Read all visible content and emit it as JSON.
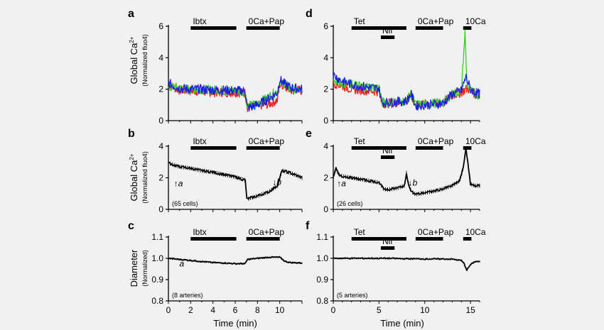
{
  "figure": {
    "panel_letters": [
      "a",
      "b",
      "c",
      "d",
      "e",
      "f"
    ],
    "ylabels": {
      "global_ca": "Global Ca",
      "global_ca_sup": "2+",
      "normalized_fluo4": "(Normalized fluo4)",
      "diameter": "Diameter",
      "normalized": "(Normalized)"
    },
    "xlabel": "Time (min)",
    "colors": {
      "red": "#e8231e",
      "green": "#35d020",
      "blue": "#1c20e6",
      "black": "#000000"
    }
  },
  "chart_data": [
    {
      "panel": "a",
      "type": "line",
      "ylim": [
        0,
        6
      ],
      "yticks": [
        0,
        2,
        4,
        6
      ],
      "xlim": [
        0,
        12
      ],
      "ylabel": "Global Ca2+ (Normalized fluo4)",
      "bars": [
        {
          "label": "Ibtx",
          "start": 2,
          "end": 6.1
        },
        {
          "label": "0Ca+Pap",
          "start": 7,
          "end": 10
        }
      ],
      "series": [
        {
          "name": "red",
          "color": "#e8231e",
          "x": [
            0,
            0.5,
            1,
            2,
            3,
            4,
            5,
            6,
            6.9,
            7.1,
            8,
            9,
            9.8,
            10,
            10.5,
            11,
            12
          ],
          "y": [
            2.3,
            2.1,
            1.95,
            1.9,
            1.85,
            1.8,
            1.8,
            1.8,
            1.75,
            0.85,
            0.95,
            1.05,
            1.3,
            2.3,
            2.2,
            2.0,
            1.9
          ]
        },
        {
          "name": "green",
          "color": "#35d020",
          "x": [
            0,
            0.5,
            1,
            2,
            3,
            4,
            5,
            6,
            6.9,
            7.1,
            8,
            9,
            9.8,
            10,
            10.5,
            11,
            12
          ],
          "y": [
            2.0,
            2.2,
            2.0,
            2.0,
            2.0,
            1.95,
            1.9,
            1.9,
            1.85,
            0.9,
            1.1,
            1.5,
            1.9,
            2.4,
            2.3,
            2.0,
            1.9
          ]
        },
        {
          "name": "blue",
          "color": "#1c20e6",
          "x": [
            0,
            0.5,
            1,
            2,
            3,
            4,
            5,
            6,
            6.9,
            7.1,
            8,
            9,
            9.8,
            10,
            10.5,
            11,
            12
          ],
          "y": [
            2.4,
            2.2,
            2.05,
            2.0,
            2.0,
            1.95,
            1.95,
            1.9,
            1.9,
            0.8,
            1.0,
            1.4,
            1.8,
            2.6,
            2.3,
            2.1,
            2.0
          ]
        }
      ]
    },
    {
      "panel": "b",
      "type": "line",
      "ylim": [
        0,
        4
      ],
      "yticks": [
        0,
        2,
        4
      ],
      "xlim": [
        0,
        12
      ],
      "ylabel": "Global Ca2+ (Normalized fluo4)",
      "bars": [
        {
          "label": "Ibtx",
          "start": 2,
          "end": 6.1
        },
        {
          "label": "0Ca+Pap",
          "start": 7,
          "end": 10
        }
      ],
      "annotations": [
        {
          "text": "↑a",
          "x": 0.9,
          "y": 1.45
        },
        {
          "text": "↓b",
          "x": 9.75,
          "y": 1.55
        }
      ],
      "n_label": "(65 cells)",
      "series": [
        {
          "name": "mean",
          "color": "#000000",
          "x": [
            0,
            0.5,
            1,
            1.5,
            2,
            3,
            4,
            5,
            6,
            6.9,
            7.05,
            8,
            9,
            9.8,
            10.2,
            10.5,
            11,
            12
          ],
          "y": [
            2.95,
            2.8,
            2.7,
            2.65,
            2.6,
            2.45,
            2.35,
            2.2,
            2.05,
            1.85,
            0.65,
            0.85,
            1.1,
            1.5,
            2.45,
            2.4,
            2.3,
            2.0
          ]
        }
      ]
    },
    {
      "panel": "c",
      "type": "line",
      "ylim": [
        0.8,
        1.1
      ],
      "yticks": [
        0.8,
        0.9,
        1.0,
        1.1
      ],
      "xticks": [
        0,
        2,
        4,
        6,
        8,
        10
      ],
      "xlim": [
        0,
        12
      ],
      "ylabel": "Diameter (Normalized)",
      "xlabel": "Time (min)",
      "bars": [
        {
          "label": "Ibtx",
          "start": 2,
          "end": 6.1
        },
        {
          "label": "0Ca+Pap",
          "start": 7,
          "end": 10
        }
      ],
      "annotations": [
        {
          "text": "a",
          "x": 1.2,
          "y": 0.962
        }
      ],
      "n_label": "(8 arteries)",
      "series": [
        {
          "name": "mean",
          "color": "#000000",
          "x": [
            0,
            1,
            2,
            3,
            4,
            5,
            6,
            6.9,
            7.1,
            8,
            9,
            10,
            10.5,
            11,
            12
          ],
          "y": [
            1.0,
            0.995,
            0.99,
            0.985,
            0.98,
            0.978,
            0.975,
            0.975,
            0.995,
            1.0,
            1.005,
            1.005,
            0.985,
            0.98,
            0.978
          ]
        }
      ]
    },
    {
      "panel": "d",
      "type": "line",
      "ylim": [
        0,
        6
      ],
      "yticks": [
        0,
        2,
        4,
        6
      ],
      "xlim": [
        0,
        16
      ],
      "ylabel": "Global Ca2+ (Normalized fluo4)",
      "bars": [
        {
          "label": "Tet",
          "start": 2,
          "end": 8
        },
        {
          "label": "Nif",
          "start": 5.2,
          "end": 6.7,
          "level": 2
        },
        {
          "label": "0Ca+Pap",
          "start": 9,
          "end": 12
        },
        {
          "label": "10Ca",
          "start": 14.2,
          "end": 15.1
        }
      ],
      "series": [
        {
          "name": "red",
          "color": "#e8231e",
          "x": [
            0,
            0.5,
            1,
            2,
            3,
            4,
            5,
            5.3,
            6,
            7,
            8,
            8.5,
            9,
            10,
            11,
            12,
            13,
            14,
            14.5,
            15,
            15.5,
            16
          ],
          "y": [
            2.4,
            2.3,
            2.2,
            2.0,
            1.95,
            1.9,
            1.85,
            1.1,
            1.1,
            1.15,
            1.2,
            1.6,
            1.0,
            1.05,
            1.05,
            1.1,
            1.6,
            1.8,
            2.0,
            2.0,
            1.7,
            1.6
          ]
        },
        {
          "name": "green",
          "color": "#35d020",
          "x": [
            0,
            0.5,
            1,
            2,
            3,
            4,
            5,
            5.3,
            6,
            7,
            8,
            8.5,
            9,
            10,
            11,
            12,
            13,
            14,
            14.4,
            14.6,
            15,
            15.5,
            16
          ],
          "y": [
            2.6,
            2.5,
            2.4,
            2.3,
            2.2,
            2.15,
            2.1,
            1.2,
            1.15,
            1.2,
            1.25,
            1.7,
            1.0,
            1.05,
            1.1,
            1.15,
            1.7,
            1.9,
            5.6,
            2.4,
            1.9,
            1.7,
            1.6
          ]
        },
        {
          "name": "blue",
          "color": "#1c20e6",
          "x": [
            0,
            0.5,
            1,
            2,
            3,
            4,
            5,
            5.3,
            6,
            7,
            8,
            8.5,
            9,
            10,
            11,
            12,
            13,
            14,
            14.5,
            15,
            15.5,
            16
          ],
          "y": [
            2.9,
            2.7,
            2.5,
            2.3,
            2.2,
            2.1,
            2.05,
            1.15,
            1.15,
            1.2,
            1.25,
            1.7,
            0.95,
            1.0,
            1.05,
            1.1,
            1.7,
            1.9,
            2.8,
            2.0,
            1.8,
            1.7
          ]
        }
      ]
    },
    {
      "panel": "e",
      "type": "line",
      "ylim": [
        0,
        4
      ],
      "yticks": [
        0,
        2,
        4
      ],
      "xlim": [
        0,
        16
      ],
      "ylabel": "Global Ca2+ (Normalized fluo4)",
      "bars": [
        {
          "label": "Tet",
          "start": 2,
          "end": 8
        },
        {
          "label": "Nif",
          "start": 5.2,
          "end": 6.7,
          "level": 2
        },
        {
          "label": "0Ca+Pap",
          "start": 9,
          "end": 12
        },
        {
          "label": "10Ca",
          "start": 14.2,
          "end": 15.1
        }
      ],
      "annotations": [
        {
          "text": "↑a",
          "x": 0.9,
          "y": 1.45
        },
        {
          "text": "↓b",
          "x": 8.7,
          "y": 1.5
        }
      ],
      "n_label": "(26 cells)",
      "series": [
        {
          "name": "mean",
          "color": "#000000",
          "x": [
            0,
            0.3,
            0.6,
            1,
            2,
            3,
            4,
            5,
            5.5,
            6,
            7,
            7.8,
            8,
            8.3,
            8.6,
            9,
            10,
            11,
            12,
            13,
            13.8,
            14.2,
            14.5,
            14.8,
            15,
            15.5,
            16
          ],
          "y": [
            2.0,
            2.6,
            2.2,
            2.1,
            2.0,
            1.9,
            1.8,
            1.7,
            1.3,
            1.25,
            1.35,
            1.5,
            2.3,
            1.4,
            1.1,
            0.95,
            1.05,
            1.15,
            1.3,
            1.5,
            1.8,
            2.6,
            3.9,
            2.5,
            1.6,
            1.5,
            1.5
          ]
        }
      ]
    },
    {
      "panel": "f",
      "type": "line",
      "ylim": [
        0.8,
        1.1
      ],
      "yticks": [
        0.8,
        0.9,
        1.0,
        1.1
      ],
      "xticks": [
        0,
        5,
        10,
        15
      ],
      "xlim": [
        0,
        16
      ],
      "ylabel": "Diameter (Normalized)",
      "xlabel": "Time (min)",
      "bars": [
        {
          "label": "Tet",
          "start": 2,
          "end": 8
        },
        {
          "label": "Nif",
          "start": 5.2,
          "end": 6.7,
          "level": 2
        },
        {
          "label": "0Ca+Pap",
          "start": 9,
          "end": 12
        },
        {
          "label": "10Ca",
          "start": 14.2,
          "end": 15.1
        }
      ],
      "n_label": "(5 arteries)",
      "series": [
        {
          "name": "mean",
          "color": "#000000",
          "x": [
            0,
            2,
            4,
            6,
            8,
            9,
            10,
            11,
            12,
            13,
            14,
            14.3,
            14.6,
            15,
            15.5,
            16
          ],
          "y": [
            1.0,
            1.0,
            1.0,
            1.0,
            0.998,
            0.998,
            0.997,
            0.997,
            0.997,
            0.996,
            0.99,
            0.975,
            0.945,
            0.97,
            0.985,
            0.985
          ]
        }
      ]
    }
  ]
}
